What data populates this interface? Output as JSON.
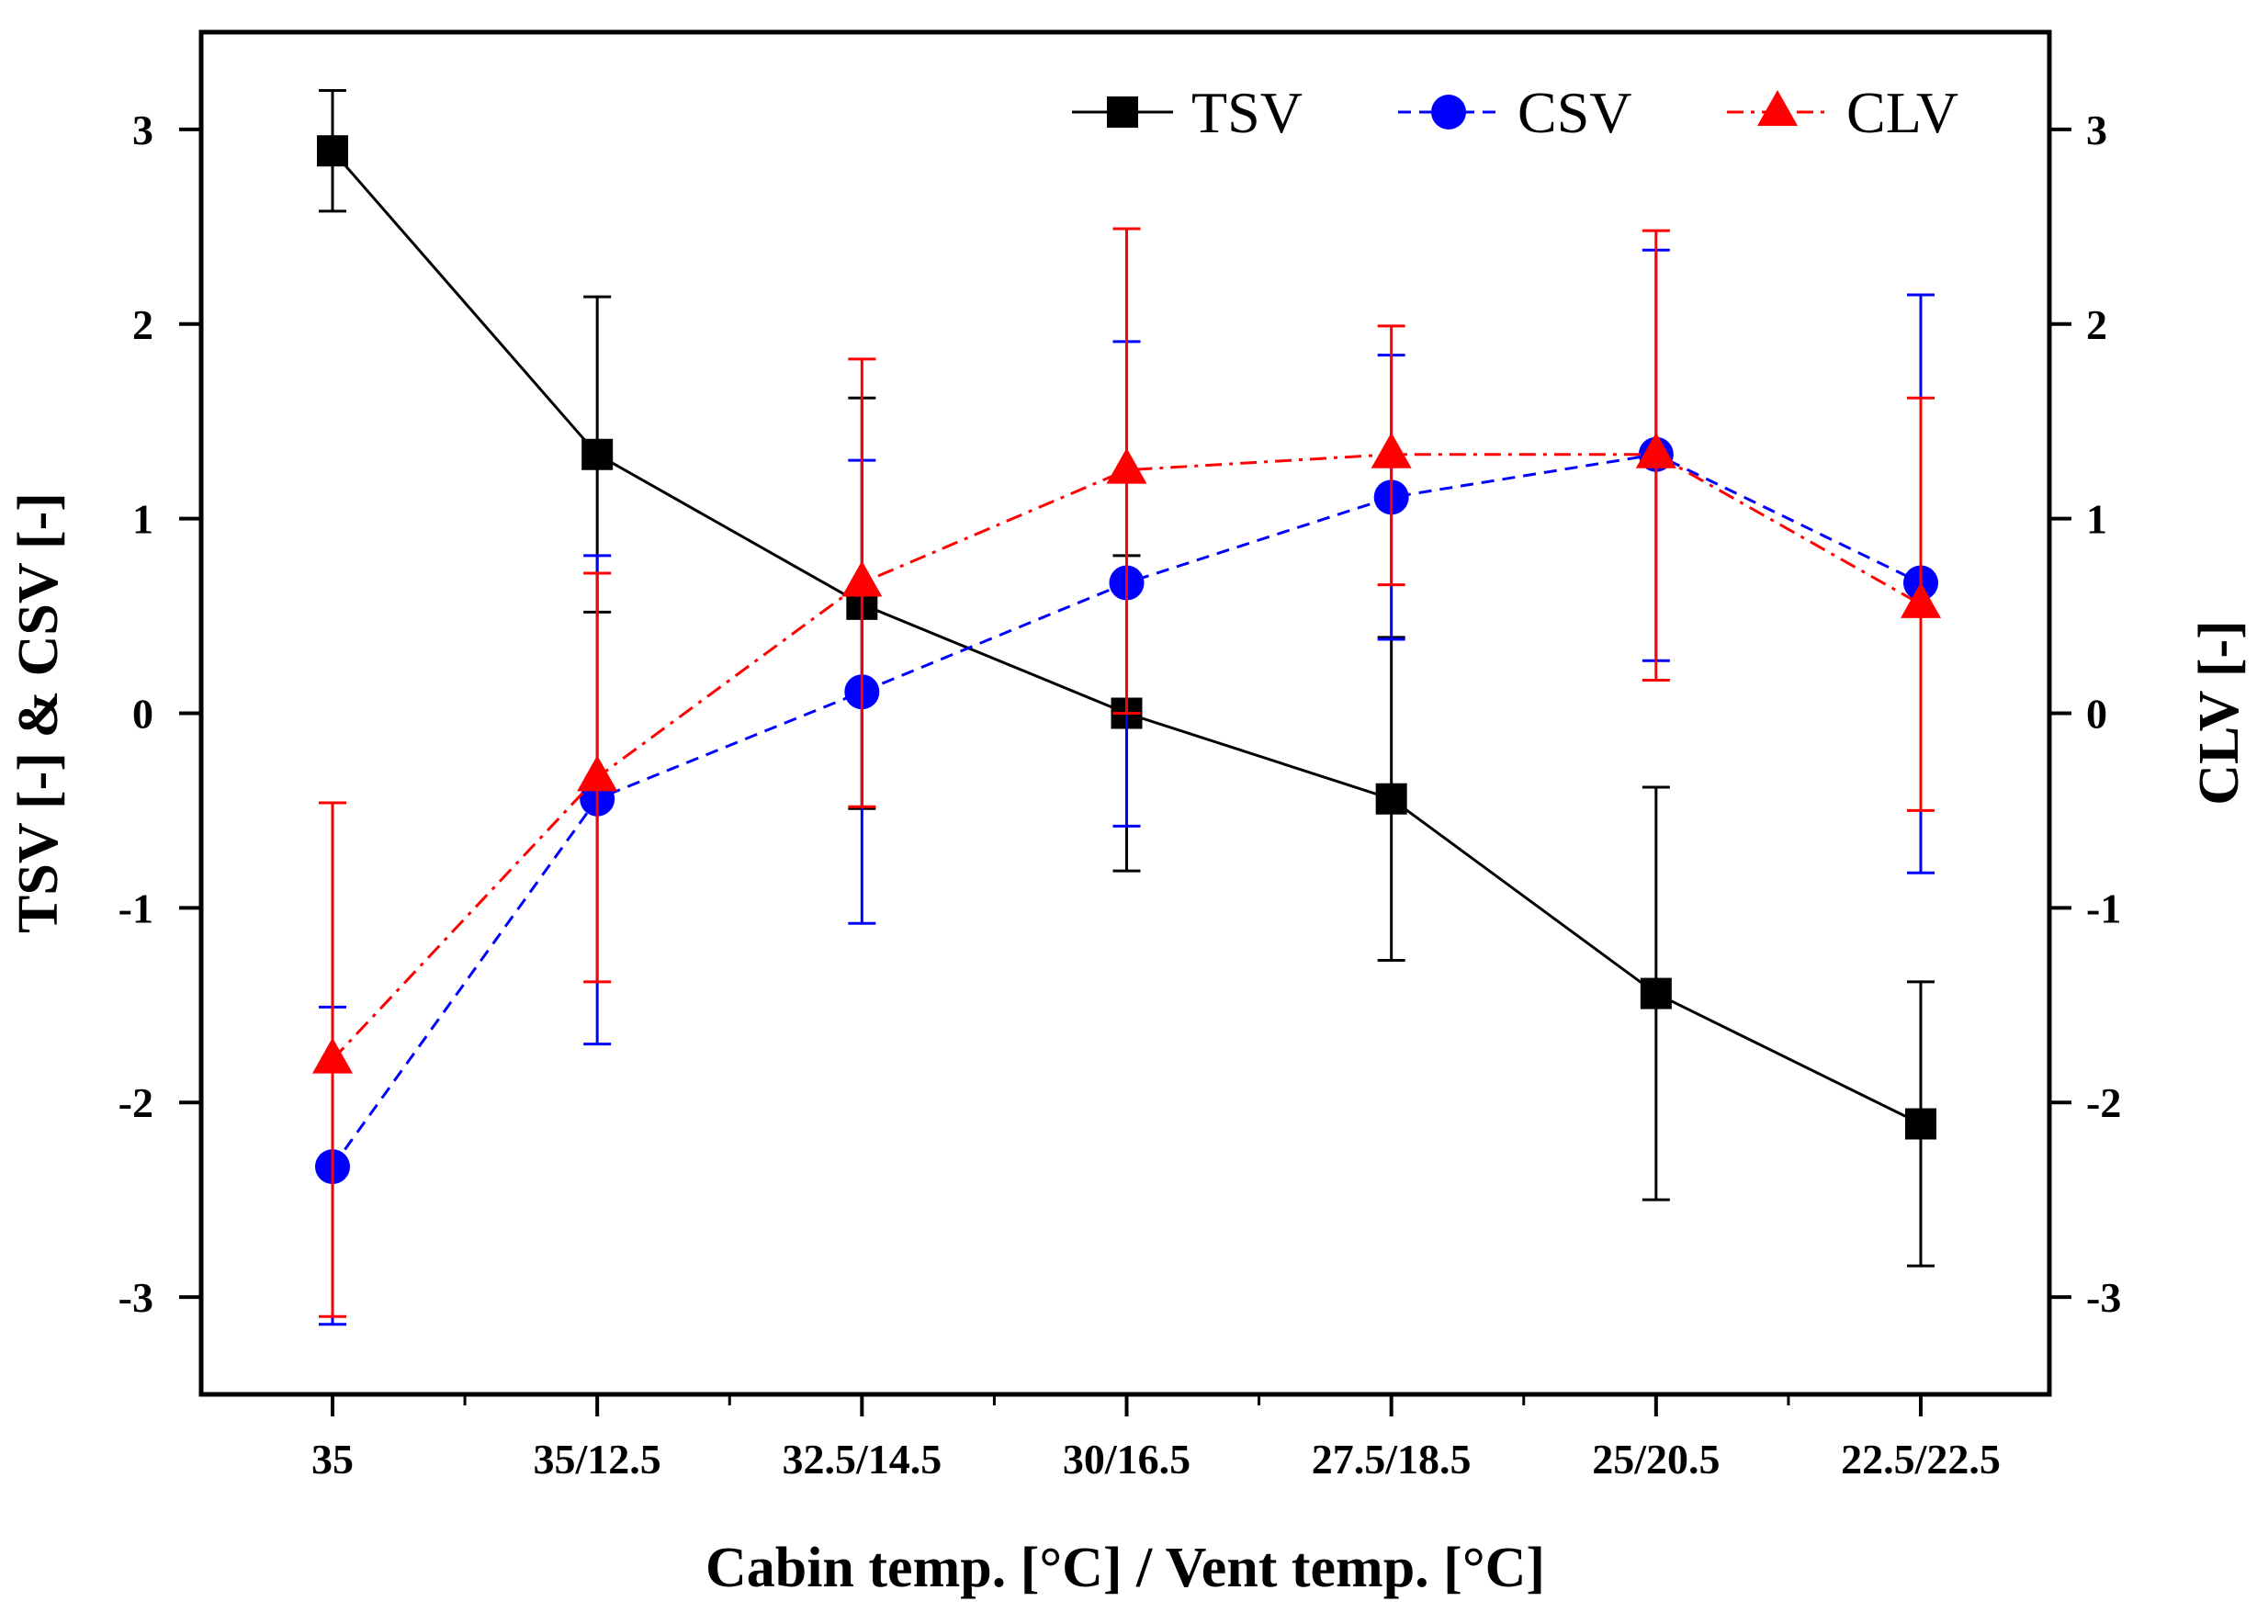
{
  "chart_data": {
    "type": "line",
    "xlabel": "Cabin temp. [°C] / Vent temp. [°C]",
    "ylabel": "TSV [-] & CSV [-]",
    "y2label": "CLV [-]",
    "categories": [
      "35",
      "35/12.5",
      "32.5/14.5",
      "30/16.5",
      "27.5/18.5",
      "25/20.5",
      "22.5/22.5"
    ],
    "ylim": [
      -3.5,
      3.5
    ],
    "y2lim": [
      -3.5,
      3.5
    ],
    "yticks": [
      "-3",
      "-2",
      "-1",
      "0",
      "1",
      "2",
      "3"
    ],
    "y2ticks": [
      "-3",
      "-2",
      "-1",
      "0",
      "1",
      "2",
      "3"
    ],
    "legend_position": "top-right",
    "grid": false,
    "series": [
      {
        "name": "TSV",
        "axis": "left",
        "color": "#000000",
        "marker": "square",
        "line_style": "solid",
        "values": [
          2.89,
          1.33,
          0.56,
          0.0,
          -0.44,
          -1.44,
          -2.11
        ],
        "err_low": [
          2.58,
          0.52,
          -0.49,
          -0.81,
          -1.27,
          -2.5,
          -2.84
        ],
        "err_high": [
          3.2,
          2.14,
          1.62,
          0.81,
          0.39,
          -0.38,
          -1.38
        ]
      },
      {
        "name": "CSV",
        "axis": "left",
        "color": "#0000ff",
        "marker": "circle",
        "line_style": "dashed",
        "values": [
          -2.33,
          -0.44,
          0.11,
          0.67,
          1.11,
          1.33,
          0.67
        ],
        "err_low": [
          -3.14,
          -1.7,
          -1.08,
          -0.58,
          0.38,
          0.27,
          -0.82
        ],
        "err_high": [
          -1.51,
          0.81,
          1.3,
          1.91,
          1.84,
          2.38,
          2.15
        ]
      },
      {
        "name": "CLV",
        "axis": "right",
        "color": "#ff0000",
        "marker": "triangle",
        "line_style": "dashdot",
        "values": [
          -1.78,
          -0.33,
          0.67,
          1.25,
          1.33,
          1.33,
          0.56
        ],
        "err_low": [
          -3.1,
          -1.38,
          -0.48,
          0.0,
          0.66,
          0.17,
          -0.5
        ],
        "err_high": [
          -0.46,
          0.72,
          1.82,
          2.49,
          1.99,
          2.48,
          1.62
        ]
      }
    ]
  }
}
